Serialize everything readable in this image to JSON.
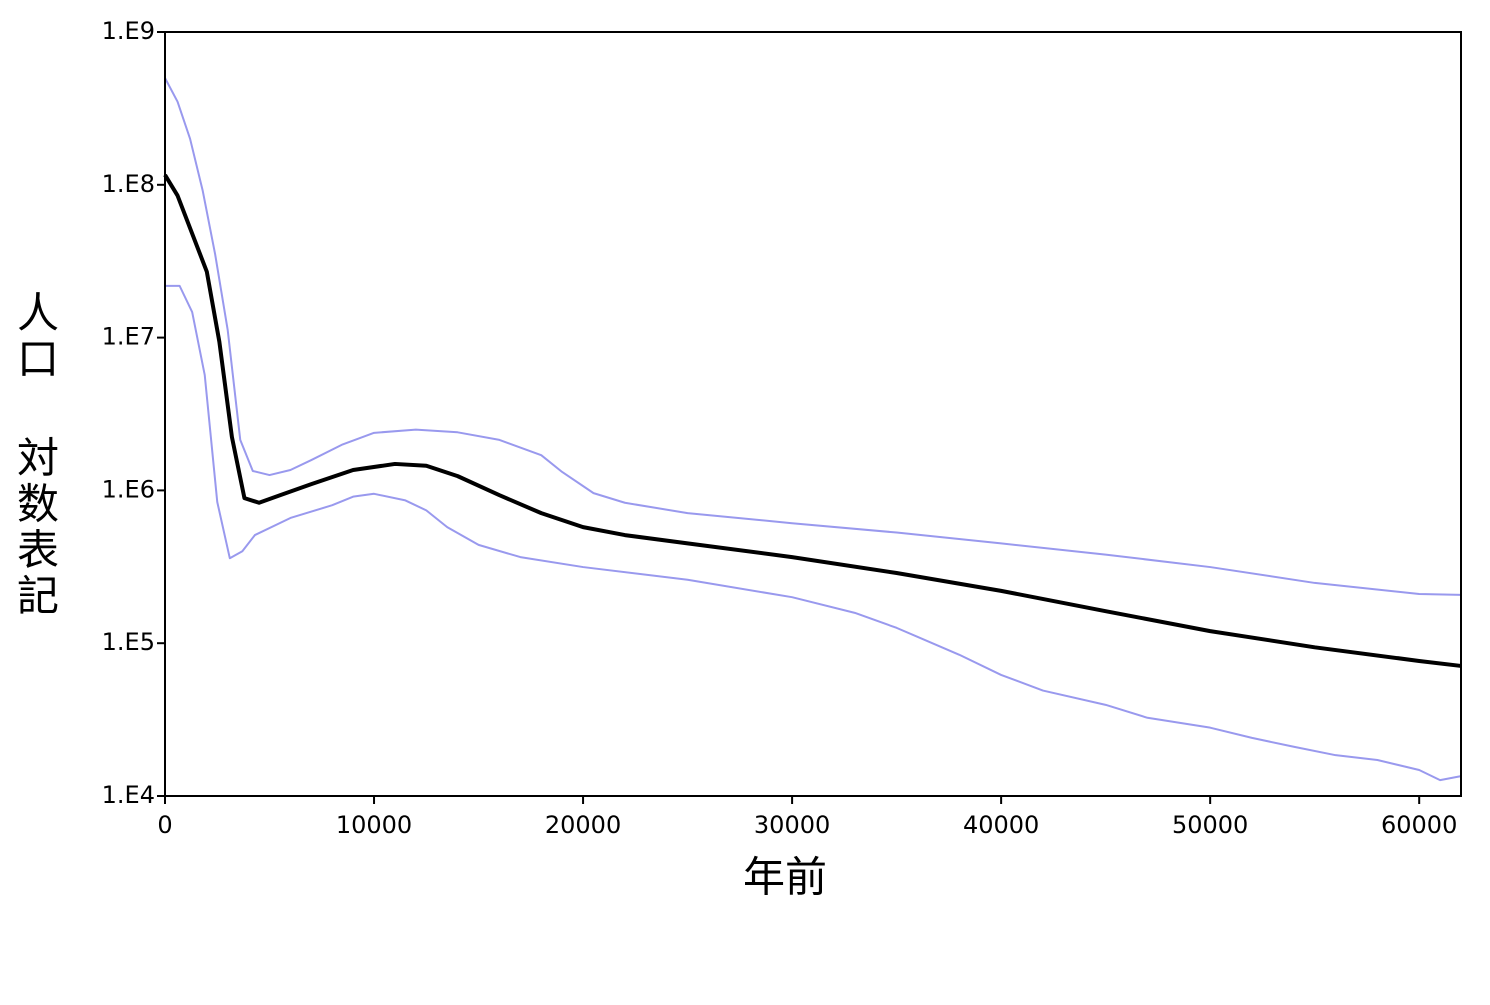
{
  "chart_data": {
    "type": "line",
    "x_label": "年前",
    "y_label": "人口 対数表記",
    "log_y": true,
    "xlim": [
      0,
      62000
    ],
    "xticks": [
      0,
      10000,
      20000,
      30000,
      40000,
      50000,
      60000
    ],
    "ylim": [
      10000,
      1000000000
    ],
    "yticks": [
      {
        "value": 10000,
        "label": "1.E4"
      },
      {
        "value": 100000,
        "label": "1.E5"
      },
      {
        "value": 1000000,
        "label": "1.E6"
      },
      {
        "value": 10000000,
        "label": "1.E7"
      },
      {
        "value": 100000000,
        "label": "1.E8"
      },
      {
        "value": 1000000000,
        "label": "1.E9"
      }
    ],
    "series": [
      {
        "color": "#9999ee",
        "width": 2,
        "x": [
          0,
          600,
          1200,
          1800,
          2400,
          3000,
          3600,
          4200,
          5000,
          6000,
          7000,
          8500,
          10000,
          12000,
          14000,
          16000,
          18000,
          19000,
          20500,
          22000,
          25000,
          30000,
          35000,
          40000,
          45000,
          50000,
          55000,
          60000,
          62000
        ],
        "values": [
          500000000,
          350000000,
          200000000,
          92000000,
          35000000,
          11200000,
          2140000,
          1340000,
          1260000,
          1360000,
          1580000,
          2000000,
          2380000,
          2500000,
          2400000,
          2140000,
          1700000,
          1320000,
          960000,
          830000,
          710000,
          610000,
          530000,
          450000,
          380000,
          315000,
          248000,
          210000,
          207000
        ]
      },
      {
        "color": "#9999ee",
        "width": 2,
        "x": [
          0,
          700,
          1300,
          1900,
          2500,
          3100,
          3700,
          4300,
          6000,
          8000,
          9000,
          10000,
          11500,
          12500,
          13500,
          15000,
          17000,
          20000,
          25000,
          30000,
          33000,
          35000,
          38000,
          40000,
          42000,
          45000,
          47000,
          50000,
          52000,
          54000,
          56000,
          58000,
          60000,
          61000,
          62000
        ],
        "values": [
          21800000,
          21800000,
          14700000,
          5700000,
          840000,
          360000,
          400000,
          510000,
          660000,
          800000,
          910000,
          950000,
          860000,
          740000,
          575000,
          440000,
          366000,
          315000,
          260000,
          200000,
          158000,
          126000,
          84000,
          62000,
          49000,
          39500,
          32500,
          28000,
          24000,
          21000,
          18500,
          17200,
          14800,
          12700,
          13500
        ]
      },
      {
        "color": "#000000",
        "width": 4,
        "x": [
          0,
          600,
          1200,
          2000,
          2600,
          3200,
          3800,
          4500,
          5500,
          7000,
          9000,
          11000,
          12500,
          14000,
          16000,
          18000,
          20000,
          22000,
          25000,
          30000,
          35000,
          40000,
          45000,
          50000,
          55000,
          60000,
          62000
        ],
        "values": [
          116000000,
          85000000,
          52000000,
          27000000,
          9400000,
          2240000,
          890000,
          830000,
          930000,
          1100000,
          1360000,
          1490000,
          1450000,
          1240000,
          930000,
          710000,
          575000,
          510000,
          450000,
          366000,
          288000,
          220000,
          162000,
          120000,
          94000,
          76500,
          71000
        ]
      }
    ]
  }
}
